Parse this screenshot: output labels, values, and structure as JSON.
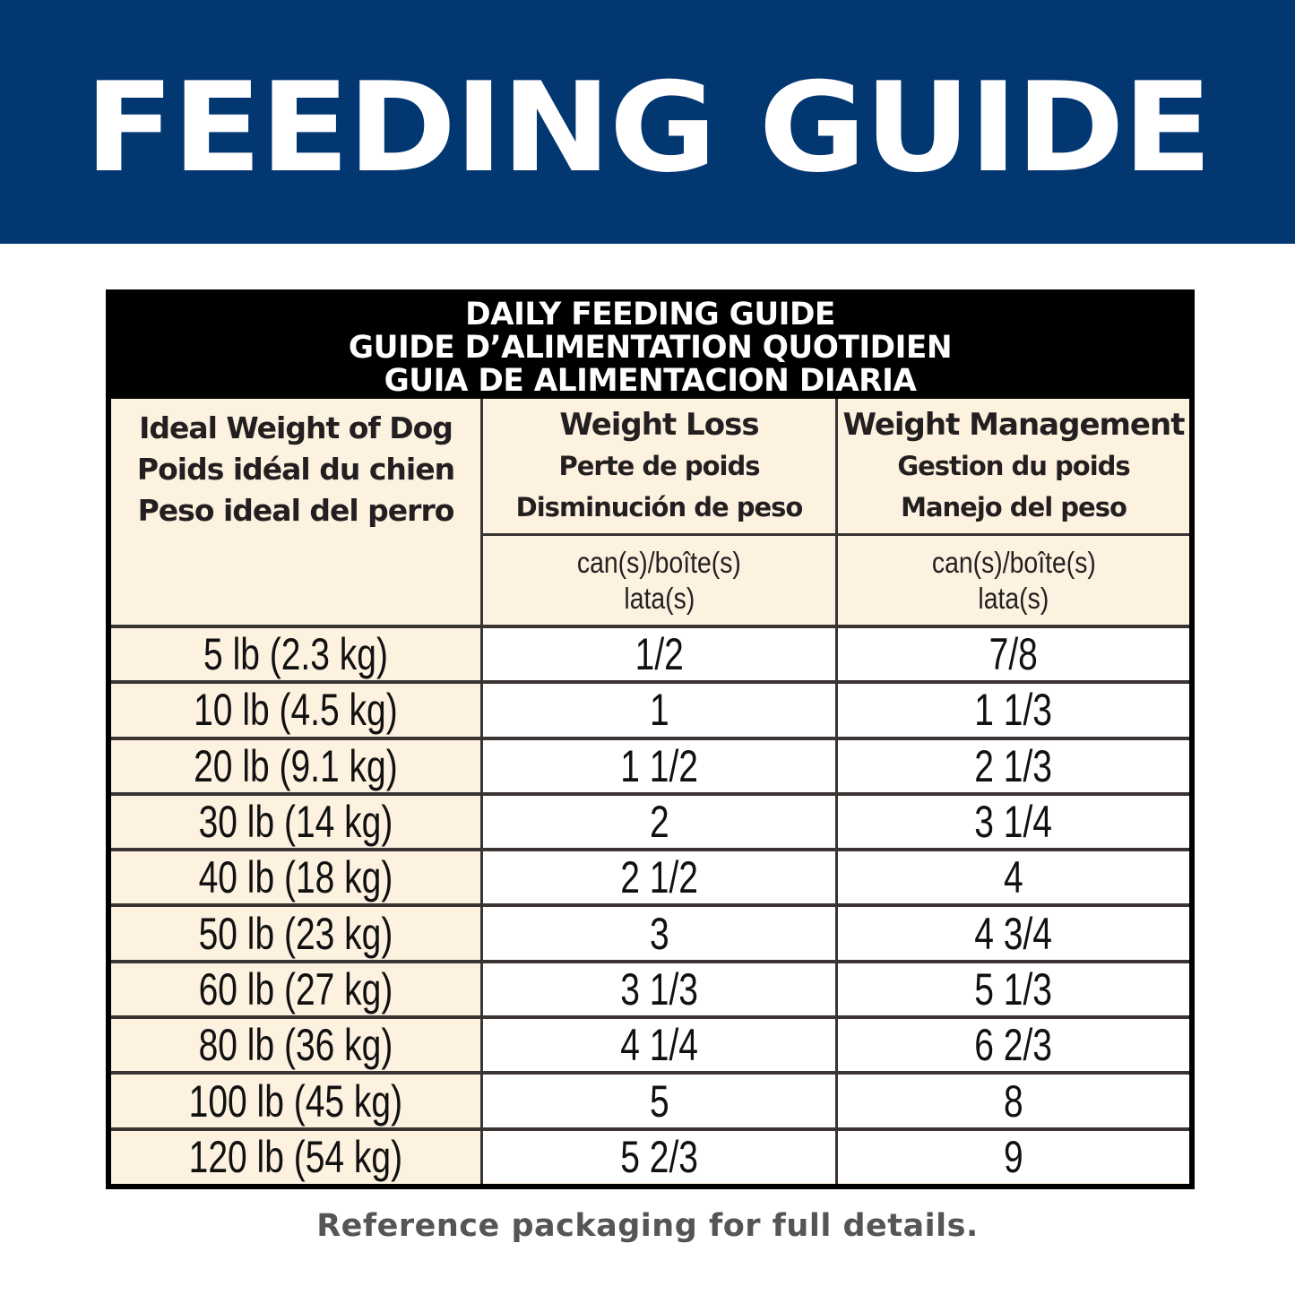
{
  "banner": {
    "title": "FEEDING GUIDE",
    "background_color": "#033772",
    "text_color": "#ffffff"
  },
  "table": {
    "title_lines": [
      "DAILY FEEDING GUIDE",
      "GUIDE D’ALIMENTATION QUOTIDIEN",
      "GUIA DE ALIMENTACION DIARIA"
    ],
    "columns": [
      {
        "header_lines": [
          "Ideal Weight of Dog",
          "Poids idéal du chien",
          "Peso ideal del perro"
        ]
      },
      {
        "header_main": "Weight Loss",
        "header_sub": [
          "Perte de poids",
          "Disminución de peso"
        ],
        "units": [
          "can(s)/boîte(s)",
          "lata(s)"
        ]
      },
      {
        "header_main": "Weight Management",
        "header_sub": [
          "Gestion du poids",
          "Manejo del peso"
        ],
        "units": [
          "can(s)/boîte(s)",
          "lata(s)"
        ]
      }
    ],
    "rows": [
      {
        "weight": "5 lb (2.3 kg)",
        "weight_loss": "1/2",
        "weight_management": "7/8"
      },
      {
        "weight": "10 lb (4.5 kg)",
        "weight_loss": "1",
        "weight_management": "1 1/3"
      },
      {
        "weight": "20 lb (9.1 kg)",
        "weight_loss": "1 1/2",
        "weight_management": "2 1/3"
      },
      {
        "weight": "30 lb (14 kg)",
        "weight_loss": "2",
        "weight_management": "3 1/4"
      },
      {
        "weight": "40 lb (18 kg)",
        "weight_loss": "2 1/2",
        "weight_management": "4"
      },
      {
        "weight": "50 lb (23 kg)",
        "weight_loss": "3",
        "weight_management": "4 3/4"
      },
      {
        "weight": "60 lb (27 kg)",
        "weight_loss": "3 1/3",
        "weight_management": "5 1/3"
      },
      {
        "weight": "80 lb (36 kg)",
        "weight_loss": "4 1/4",
        "weight_management": "6 2/3"
      },
      {
        "weight": "100 lb (45 kg)",
        "weight_loss": "5",
        "weight_management": "8"
      },
      {
        "weight": "120 lb (54 kg)",
        "weight_loss": "5 2/3",
        "weight_management": "9"
      }
    ],
    "colors": {
      "header_bg": "#000000",
      "header_text": "#ffffff",
      "label_bg": "#fdf1e0",
      "value_bg": "#ffffff",
      "grid_line": "#3a3432"
    }
  },
  "footer": {
    "note": "Reference packaging for full details.",
    "text_color": "#555555"
  }
}
